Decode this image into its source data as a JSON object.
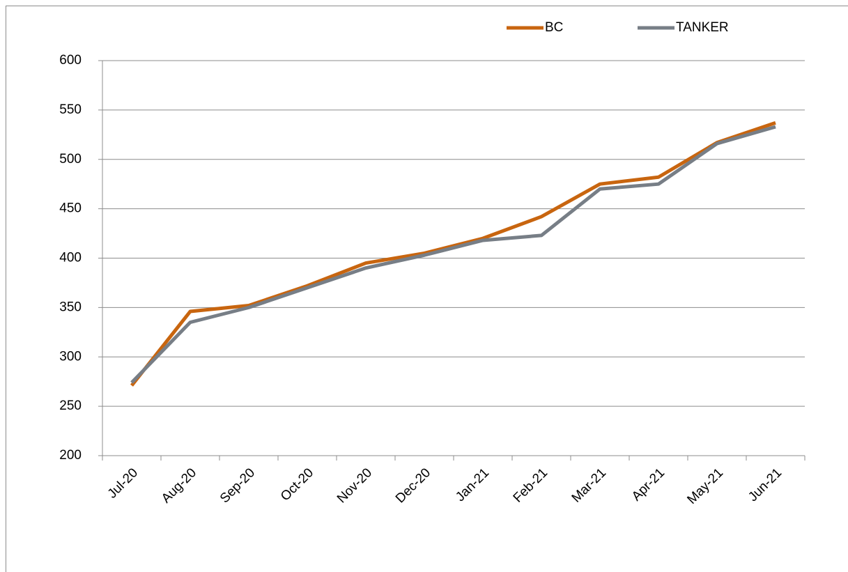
{
  "chart_data": {
    "type": "line",
    "categories": [
      "Jul-20",
      "Aug-20",
      "Sep-20",
      "Oct-20",
      "Nov-20",
      "Dec-20",
      "Jan-21",
      "Feb-21",
      "Mar-21",
      "Apr-21",
      "May-21",
      "Jun-21"
    ],
    "series": [
      {
        "name": "BC",
        "color": "#c8650f",
        "values": [
          271,
          346,
          352,
          372,
          395,
          405,
          420,
          442,
          475,
          482,
          517,
          537
        ]
      },
      {
        "name": "TANKER",
        "color": "#777e86",
        "values": [
          274,
          335,
          350,
          370,
          390,
          403,
          418,
          423,
          470,
          475,
          516,
          533
        ]
      }
    ],
    "ylim": [
      200,
      600
    ],
    "yticks": [
      200,
      250,
      300,
      350,
      400,
      450,
      500,
      550,
      600
    ],
    "grid": true,
    "legend": "top"
  }
}
